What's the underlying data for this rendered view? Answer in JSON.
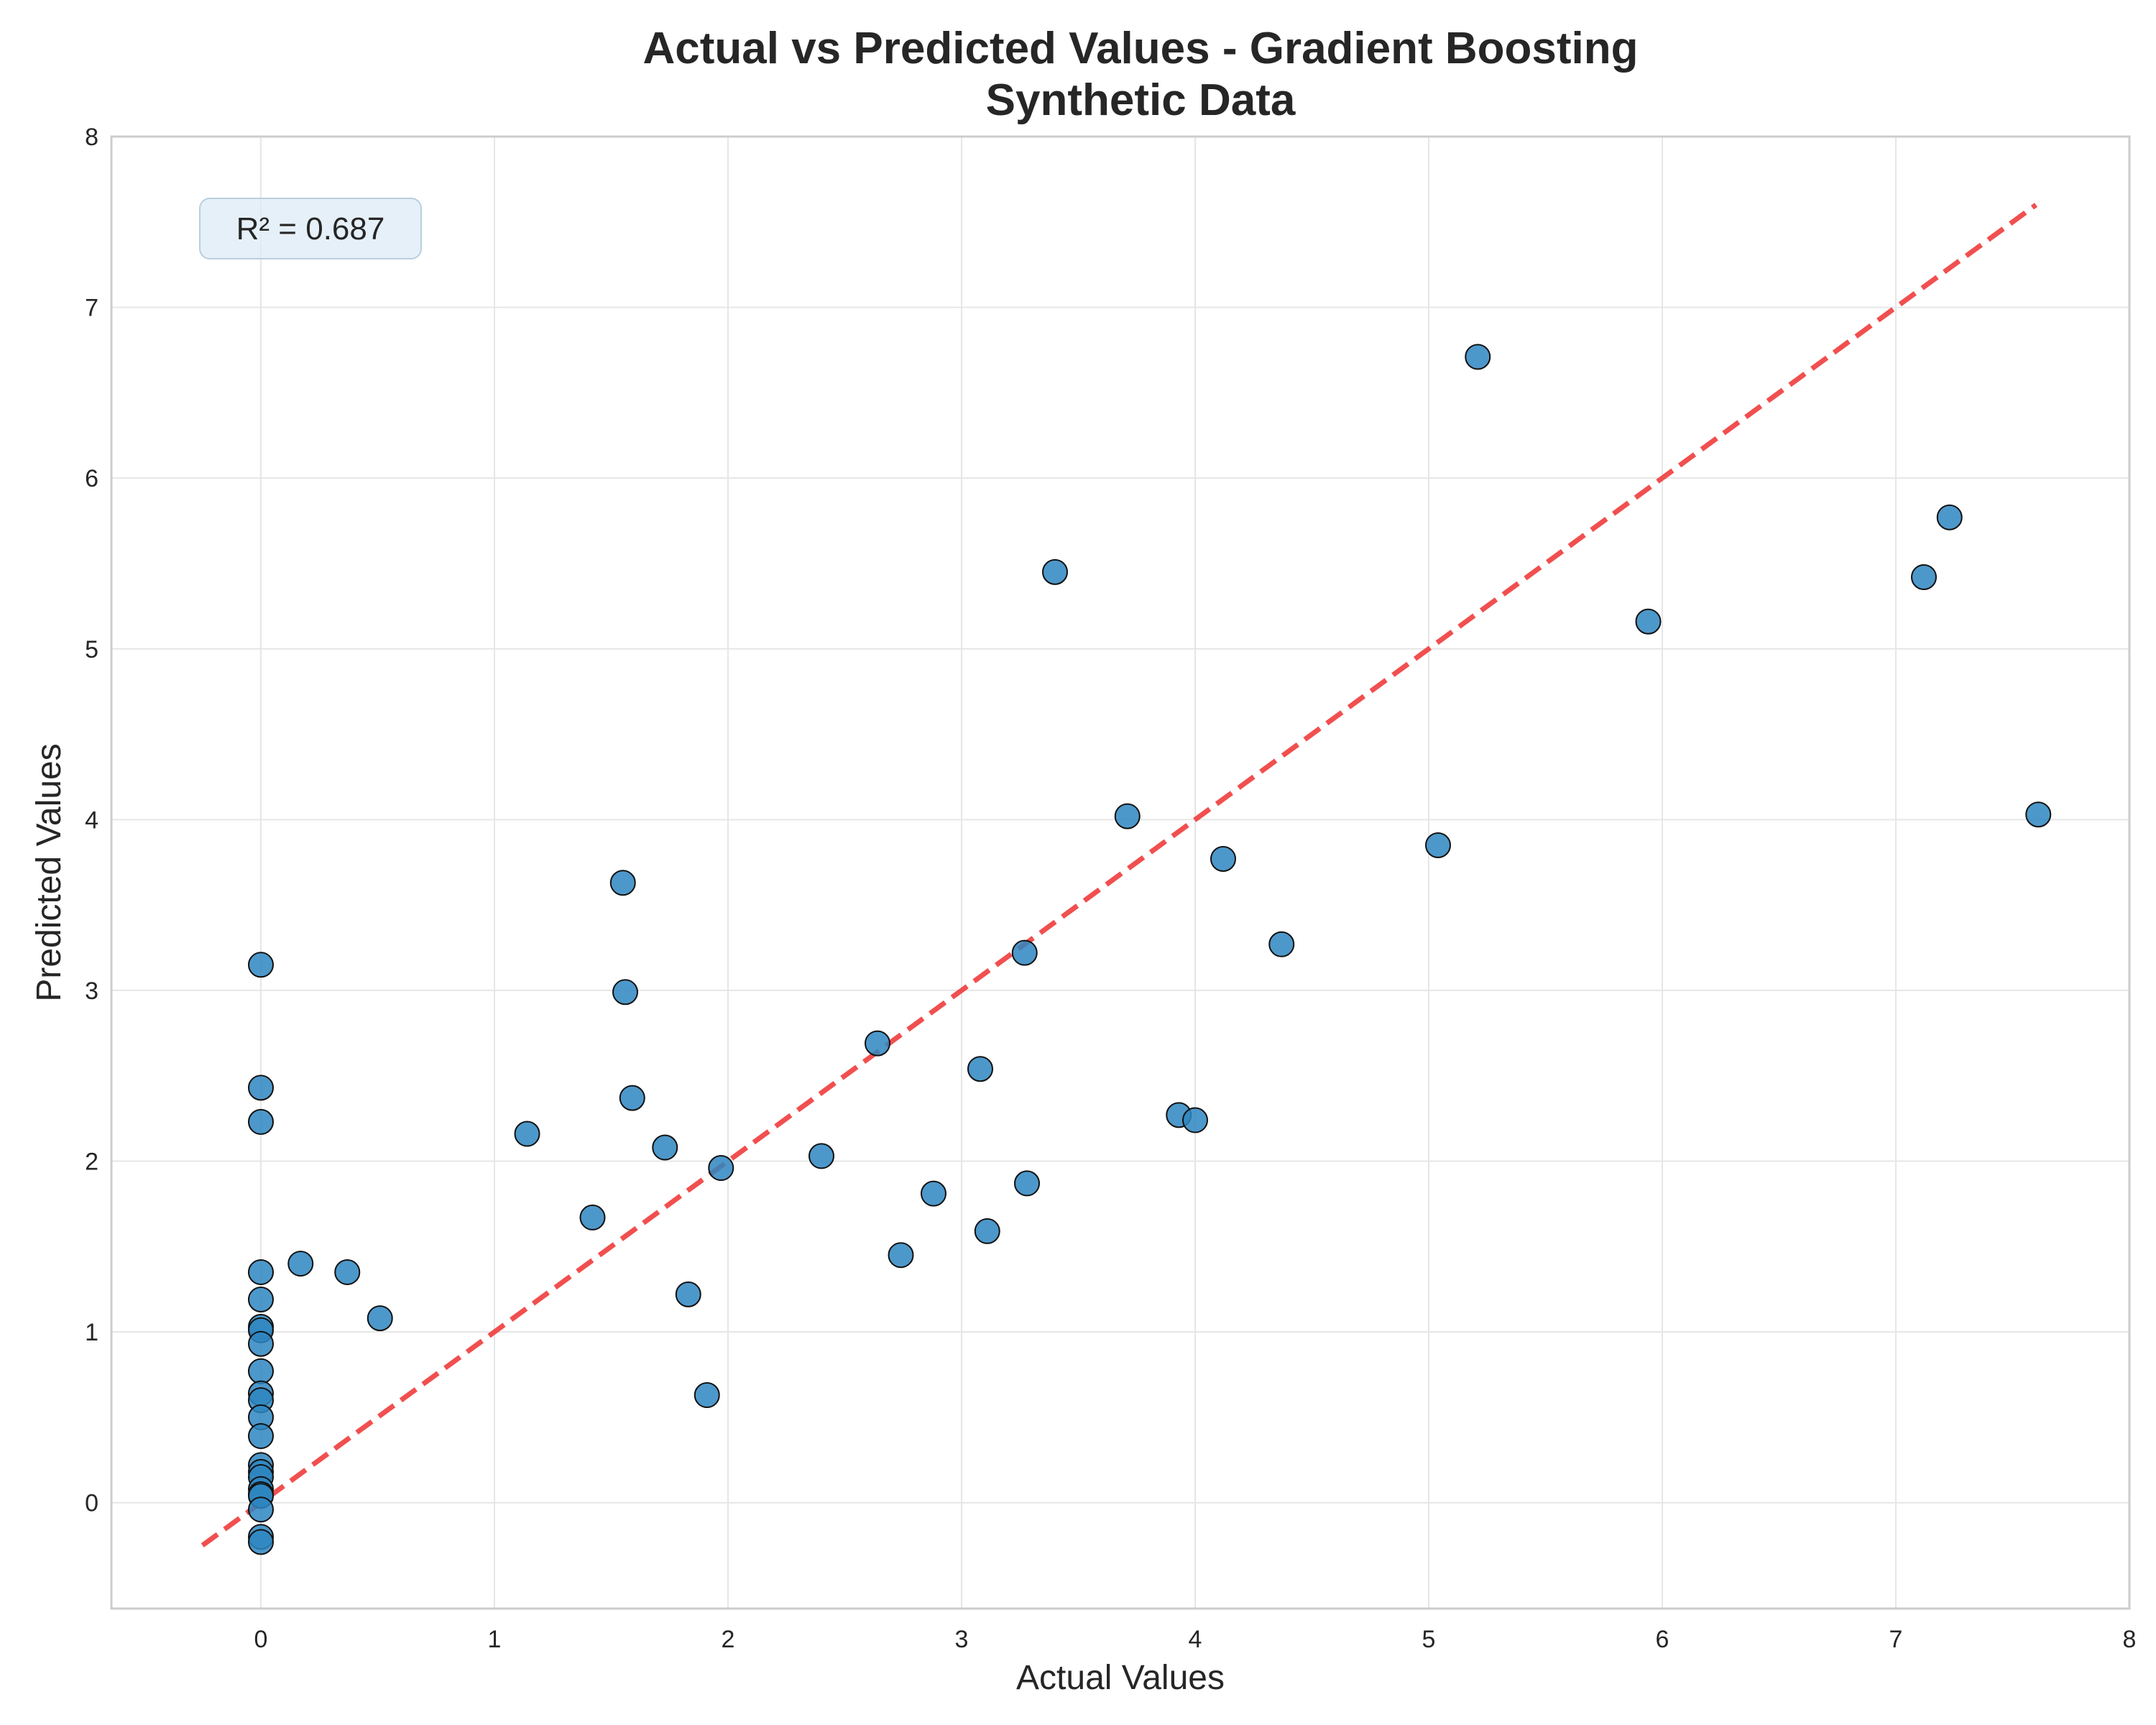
{
  "chart_data": {
    "type": "scatter",
    "title": "Actual vs Predicted Values - Gradient Boosting",
    "subtitle": "Synthetic Data",
    "xlabel": "Actual Values",
    "ylabel": "Predicted Values",
    "xlim": [
      -0.64,
      8.0
    ],
    "ylim": [
      -0.62,
      8.0
    ],
    "xticks": [
      0,
      1,
      2,
      3,
      4,
      5,
      6,
      7,
      8
    ],
    "yticks": [
      0,
      1,
      2,
      3,
      4,
      5,
      6,
      7,
      8
    ],
    "grid": true,
    "annotation": "R² = 0.687",
    "reference_line": {
      "style": "dashed",
      "color": "#f03c3c",
      "from": [
        -0.25,
        -0.25
      ],
      "to": [
        7.6,
        7.6
      ]
    },
    "point_color": "#2e86c1",
    "points": [
      [
        0,
        3.15
      ],
      [
        0,
        2.43
      ],
      [
        0,
        2.23
      ],
      [
        0,
        1.35
      ],
      [
        0,
        1.19
      ],
      [
        0,
        1.03
      ],
      [
        0,
        1.01
      ],
      [
        0,
        0.93
      ],
      [
        0,
        0.77
      ],
      [
        0,
        0.64
      ],
      [
        0,
        0.6
      ],
      [
        0,
        0.5
      ],
      [
        0,
        0.39
      ],
      [
        0,
        0.22
      ],
      [
        0,
        0.18
      ],
      [
        0,
        0.15
      ],
      [
        0,
        0.08
      ],
      [
        0,
        0.05
      ],
      [
        0,
        0.04
      ],
      [
        0,
        -0.04
      ],
      [
        0,
        -0.2
      ],
      [
        0,
        -0.23
      ],
      [
        0.17,
        1.4
      ],
      [
        0.37,
        1.35
      ],
      [
        0.51,
        1.08
      ],
      [
        1.14,
        2.16
      ],
      [
        1.42,
        1.67
      ],
      [
        1.55,
        3.63
      ],
      [
        1.56,
        2.99
      ],
      [
        1.59,
        2.37
      ],
      [
        1.73,
        2.08
      ],
      [
        1.83,
        1.22
      ],
      [
        1.91,
        0.63
      ],
      [
        1.97,
        1.96
      ],
      [
        2.4,
        2.03
      ],
      [
        2.64,
        2.69
      ],
      [
        2.74,
        1.45
      ],
      [
        2.88,
        1.81
      ],
      [
        3.08,
        2.54
      ],
      [
        3.11,
        1.59
      ],
      [
        3.27,
        3.22
      ],
      [
        3.28,
        1.87
      ],
      [
        3.4,
        5.45
      ],
      [
        3.71,
        4.02
      ],
      [
        3.93,
        2.27
      ],
      [
        4.0,
        2.24
      ],
      [
        4.12,
        3.77
      ],
      [
        4.37,
        3.27
      ],
      [
        5.04,
        3.85
      ],
      [
        5.21,
        6.71
      ],
      [
        5.94,
        5.16
      ],
      [
        7.12,
        5.42
      ],
      [
        7.23,
        5.77
      ],
      [
        7.61,
        4.03
      ]
    ]
  }
}
